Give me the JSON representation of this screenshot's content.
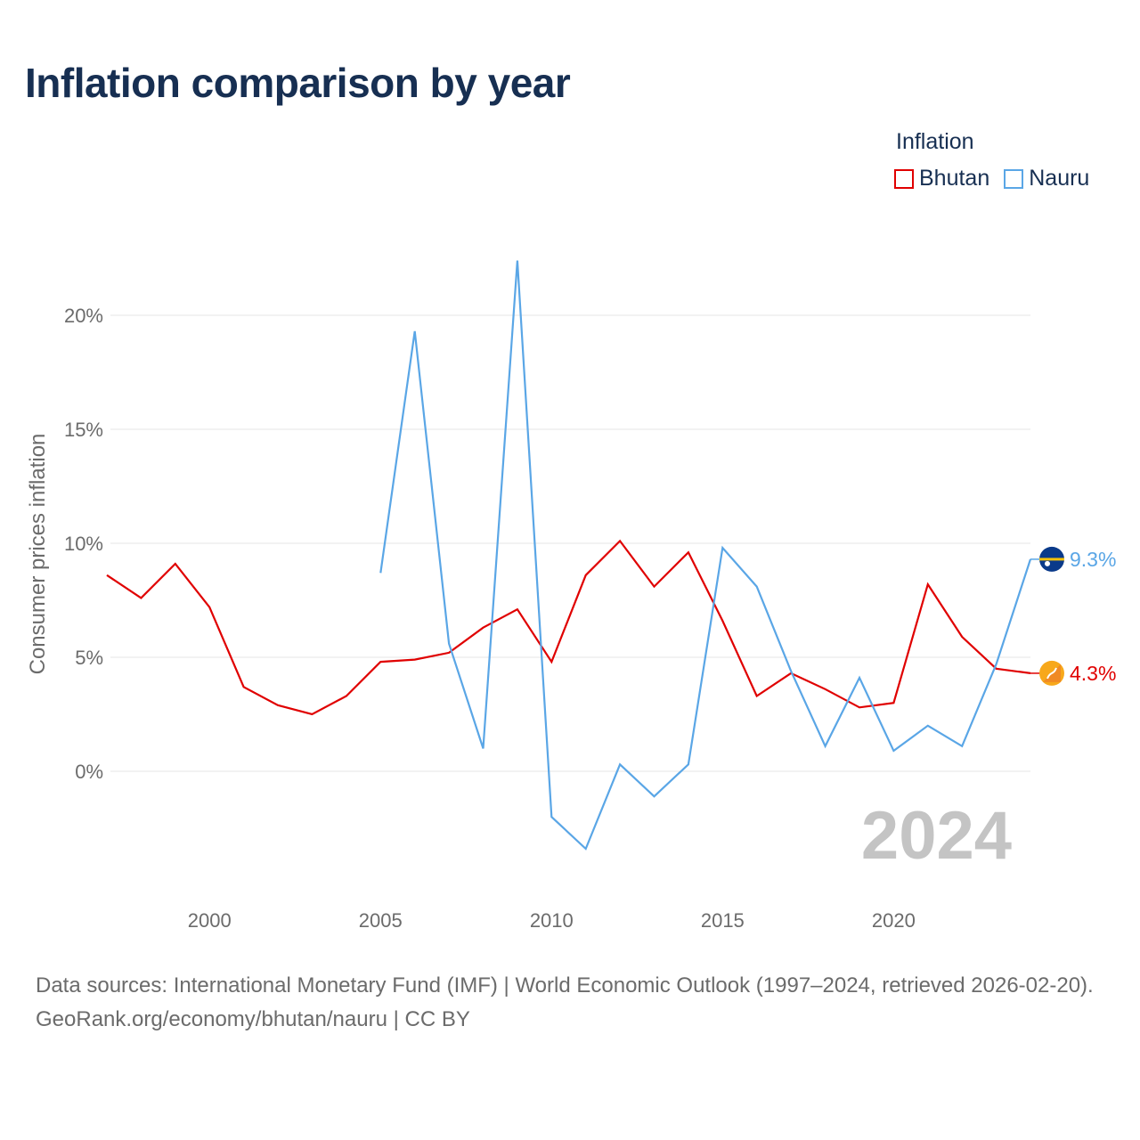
{
  "title": "Inflation comparison by year",
  "legend": {
    "title": "Inflation",
    "items": [
      {
        "label": "Bhutan",
        "color": "#e00000"
      },
      {
        "label": "Nauru",
        "color": "#5aa6e6"
      }
    ]
  },
  "year_watermark": "2024",
  "footer": {
    "source": "Data sources: International Monetary Fund (IMF) | World Economic Outlook (1997–2024, retrieved 2026-02-20).",
    "credit": "GeoRank.org/economy/bhutan/nauru | CC BY"
  },
  "chart_data": {
    "type": "line",
    "title": "Inflation comparison by year",
    "xlabel": "",
    "ylabel": "Consumer prices inflation",
    "xlim": [
      1997,
      2024
    ],
    "ylim": [
      -4,
      22.5
    ],
    "x_ticks": [
      2000,
      2005,
      2010,
      2015,
      2020
    ],
    "y_ticks": [
      0,
      5,
      10,
      15,
      20
    ],
    "y_tick_labels": [
      "0%",
      "5%",
      "10%",
      "15%",
      "20%"
    ],
    "grid": true,
    "series": [
      {
        "name": "Bhutan",
        "color": "#e00000",
        "end_label": "4.3%",
        "points": [
          [
            1997,
            8.6
          ],
          [
            1998,
            7.6
          ],
          [
            1999,
            9.1
          ],
          [
            2000,
            7.2
          ],
          [
            2001,
            3.7
          ],
          [
            2002,
            2.9
          ],
          [
            2003,
            2.5
          ],
          [
            2004,
            3.3
          ],
          [
            2005,
            4.8
          ],
          [
            2006,
            4.9
          ],
          [
            2007,
            5.2
          ],
          [
            2008,
            6.3
          ],
          [
            2009,
            7.1
          ],
          [
            2010,
            4.8
          ],
          [
            2011,
            8.6
          ],
          [
            2012,
            10.1
          ],
          [
            2013,
            8.1
          ],
          [
            2014,
            9.6
          ],
          [
            2015,
            6.6
          ],
          [
            2016,
            3.3
          ],
          [
            2017,
            4.3
          ],
          [
            2018,
            3.6
          ],
          [
            2019,
            2.8
          ],
          [
            2020,
            3.0
          ],
          [
            2021,
            8.2
          ],
          [
            2022,
            5.9
          ],
          [
            2023,
            4.5
          ],
          [
            2024,
            4.3
          ]
        ]
      },
      {
        "name": "Nauru",
        "color": "#5aa6e6",
        "end_label": "9.3%",
        "points": [
          [
            2005,
            8.7
          ],
          [
            2006,
            19.3
          ],
          [
            2007,
            5.6
          ],
          [
            2008,
            1.0
          ],
          [
            2009,
            22.4
          ],
          [
            2010,
            -2.0
          ],
          [
            2011,
            -3.4
          ],
          [
            2012,
            0.3
          ],
          [
            2013,
            -1.1
          ],
          [
            2014,
            0.3
          ],
          [
            2015,
            9.8
          ],
          [
            2016,
            8.1
          ],
          [
            2017,
            4.4
          ],
          [
            2018,
            1.1
          ],
          [
            2019,
            4.1
          ],
          [
            2020,
            0.9
          ],
          [
            2021,
            2.0
          ],
          [
            2022,
            1.1
          ],
          [
            2023,
            4.7
          ],
          [
            2024,
            9.3
          ]
        ]
      }
    ]
  }
}
